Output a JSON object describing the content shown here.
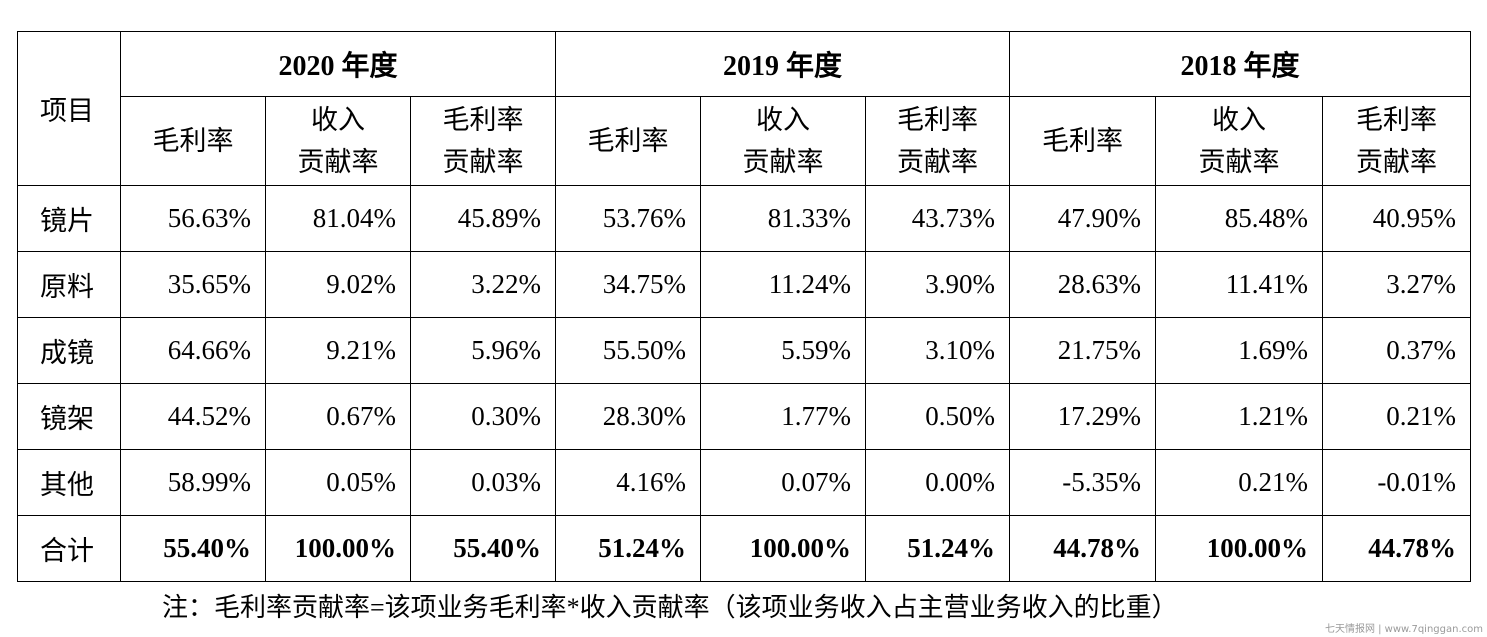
{
  "table": {
    "item_header": "项目",
    "years": [
      "2020 年度",
      "2019 年度",
      "2018 年度"
    ],
    "sub_headers": [
      {
        "line1": "毛利率",
        "line2": ""
      },
      {
        "line1": "收入",
        "line2": "贡献率"
      },
      {
        "line1": "毛利率",
        "line2": "贡献率"
      }
    ],
    "rows": [
      {
        "label": "镜片",
        "values": [
          "56.63%",
          "81.04%",
          "45.89%",
          "53.76%",
          "81.33%",
          "43.73%",
          "47.90%",
          "85.48%",
          "40.95%"
        ]
      },
      {
        "label": "原料",
        "values": [
          "35.65%",
          "9.02%",
          "3.22%",
          "34.75%",
          "11.24%",
          "3.90%",
          "28.63%",
          "11.41%",
          "3.27%"
        ]
      },
      {
        "label": "成镜",
        "values": [
          "64.66%",
          "9.21%",
          "5.96%",
          "55.50%",
          "5.59%",
          "3.10%",
          "21.75%",
          "1.69%",
          "0.37%"
        ]
      },
      {
        "label": "镜架",
        "values": [
          "44.52%",
          "0.67%",
          "0.30%",
          "28.30%",
          "1.77%",
          "0.50%",
          "17.29%",
          "1.21%",
          "0.21%"
        ]
      },
      {
        "label": "其他",
        "values": [
          "58.99%",
          "0.05%",
          "0.03%",
          "4.16%",
          "0.07%",
          "0.00%",
          "-5.35%",
          "0.21%",
          "-0.01%"
        ]
      }
    ],
    "total": {
      "label": "合计",
      "values": [
        "55.40%",
        "100.00%",
        "55.40%",
        "51.24%",
        "100.00%",
        "51.24%",
        "44.78%",
        "100.00%",
        "44.78%"
      ]
    }
  },
  "note": "注：毛利率贡献率=该项业务毛利率*收入贡献率（该项业务收入占主营业务收入的比重）",
  "watermark": "七天情报网 | www.7qinggan.com"
}
